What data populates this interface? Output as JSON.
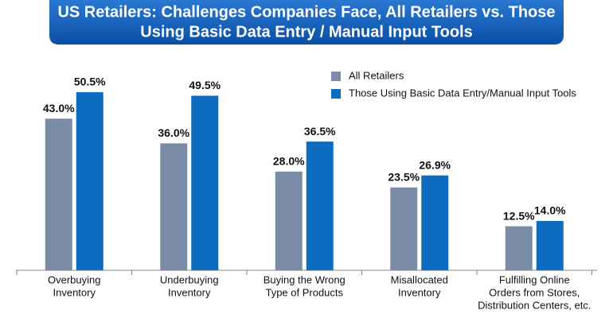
{
  "chart_data": {
    "type": "bar",
    "title": [
      "US Retailers: Challenges Companies Face, All Retailers vs. Those",
      "Using Basic Data Entry / Manual Input Tools"
    ],
    "categories": [
      [
        "Overbuying",
        "Inventory"
      ],
      [
        "Underbuying",
        "Inventory"
      ],
      [
        "Buying the Wrong",
        "Type of Products"
      ],
      [
        "Misallocated",
        "Inventory"
      ],
      [
        "Fulfilling Online",
        "Orders from Stores,",
        "Distribution Centers, etc."
      ]
    ],
    "series": [
      {
        "name": "All Retailers",
        "color": "#7b8ca6",
        "values": [
          43.0,
          36.0,
          28.0,
          23.5,
          12.5
        ],
        "value_labels": [
          "43.0%",
          "36.0%",
          "28.0%",
          "23.5%",
          "12.5%"
        ]
      },
      {
        "name": "Those Using Basic Data Entry/Manual Input Tools",
        "color": "#0b6cc0",
        "values": [
          50.5,
          49.5,
          36.5,
          26.9,
          14.0
        ],
        "value_labels": [
          "50.5%",
          "49.5%",
          "36.5%",
          "26.9%",
          "14.0%"
        ]
      }
    ]
  }
}
